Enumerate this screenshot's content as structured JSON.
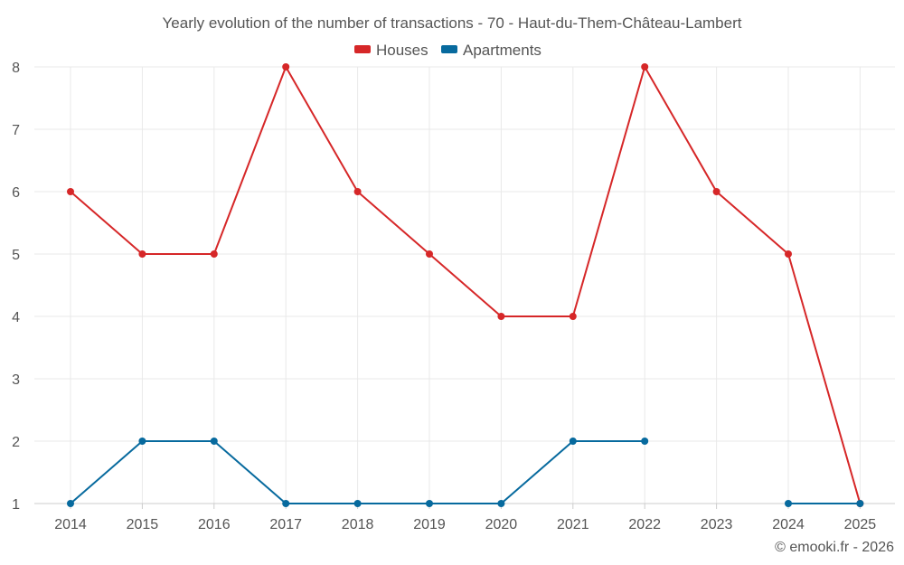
{
  "chart_data": {
    "type": "line",
    "title": "Yearly evolution of the number of transactions - 70 - Haut-du-Them-Château-Lambert",
    "categories": [
      "2014",
      "2015",
      "2016",
      "2017",
      "2018",
      "2019",
      "2020",
      "2021",
      "2022",
      "2023",
      "2024",
      "2025"
    ],
    "series": [
      {
        "name": "Houses",
        "color": "#d62728",
        "values": [
          6,
          5,
          5,
          8,
          6,
          5,
          4,
          4,
          8,
          6,
          5,
          1
        ]
      },
      {
        "name": "Apartments",
        "color": "#076a9e",
        "values": [
          1,
          2,
          2,
          1,
          1,
          1,
          1,
          2,
          2,
          null,
          1,
          1
        ]
      }
    ],
    "y_ticks": [
      "1",
      "2",
      "3",
      "4",
      "5",
      "6",
      "7",
      "8"
    ],
    "ylim": [
      1,
      8
    ],
    "xlabel": "",
    "ylabel": "",
    "grid": true,
    "legend_position": "top-center",
    "credit": "© emooki.fr - 2026"
  }
}
